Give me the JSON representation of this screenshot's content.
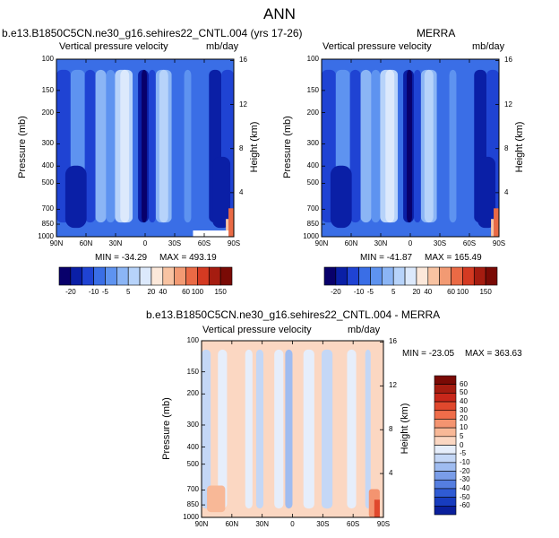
{
  "figure_title": "ANN",
  "colors": {
    "cb1": [
      "#08006b",
      "#0a1fa6",
      "#1f43d3",
      "#3a6ee6",
      "#5e93f0",
      "#8bb5f5",
      "#b7d3fa",
      "#dce9fc",
      "#fce8da",
      "#f8c3a2",
      "#f29a73",
      "#ea6a45",
      "#d43a22",
      "#a51c10",
      "#7a0a05"
    ],
    "cb2": [
      "#08006b",
      "#0a1fa6",
      "#1f43d3",
      "#3a6ee6",
      "#5e93f0",
      "#8bb5f5",
      "#b7d3fa",
      "#dce9fc",
      "#fce8da",
      "#f8c3a2",
      "#f29a73",
      "#ea6a45",
      "#d43a22",
      "#a51c10",
      "#7a0a05"
    ]
  },
  "chart_data": [
    {
      "type": "heatmap",
      "id": "model",
      "title": "b.e13.B1850C5CN.ne30_g16.sehires22_CNTL.004 (yrs 17-26)",
      "left_label": "Vertical pressure velocity",
      "right_label": "mb/day",
      "xlabel": "",
      "ylabel": "Pressure (mb)",
      "y2label": "Height (km)",
      "x_ticks": [
        "90N",
        "60N",
        "30N",
        "0",
        "30S",
        "60S",
        "90S"
      ],
      "p_ticks": [
        "100",
        "150",
        "200",
        "300",
        "400",
        "500",
        "700",
        "850",
        "1000"
      ],
      "h_ticks": [
        "16",
        "12",
        "8",
        "4"
      ],
      "min_label": "MIN = -34.29",
      "max_label": "MAX = 493.19",
      "colorbar_labels": [
        "-20",
        "-10",
        "-5",
        "5",
        "20",
        "40",
        "60",
        "100",
        "150"
      ]
    },
    {
      "type": "heatmap",
      "id": "obs",
      "title": "MERRA",
      "left_label": "Vertical pressure velocity",
      "right_label": "mb/day",
      "xlabel": "",
      "ylabel": "Pressure (mb)",
      "y2label": "Height (km)",
      "x_ticks": [
        "90N",
        "60N",
        "30N",
        "0",
        "30S",
        "60S",
        "90S"
      ],
      "p_ticks": [
        "100",
        "150",
        "200",
        "300",
        "400",
        "500",
        "700",
        "850",
        "1000"
      ],
      "h_ticks": [
        "16",
        "12",
        "8",
        "4"
      ],
      "min_label": "MIN = -41.87",
      "max_label": "MAX = 165.49",
      "colorbar_labels": [
        "-20",
        "-10",
        "-5",
        "5",
        "20",
        "40",
        "60",
        "100",
        "150"
      ]
    },
    {
      "type": "heatmap",
      "id": "diff",
      "title": "b.e13.B1850C5CN.ne30_g16.sehires22_CNTL.004 - MERRA",
      "left_label": "Vertical pressure velocity",
      "right_label": "mb/day",
      "xlabel": "",
      "ylabel": "Pressure (mb)",
      "y2label": "Height (km)",
      "x_ticks": [
        "90N",
        "60N",
        "30N",
        "0",
        "30S",
        "60S",
        "90S"
      ],
      "p_ticks": [
        "100",
        "150",
        "200",
        "300",
        "400",
        "500",
        "700",
        "850",
        "1000"
      ],
      "h_ticks": [
        "16",
        "12",
        "8",
        "4"
      ],
      "min_label": "MIN = -23.05",
      "max_label": "MAX = 363.63",
      "colorbar_labels": [
        "60",
        "50",
        "40",
        "30",
        "20",
        "10",
        "5",
        "0",
        "-5",
        "-10",
        "-20",
        "-30",
        "-40",
        "-50",
        "-60"
      ],
      "colorbar_colors": [
        "#7a0a05",
        "#a51c10",
        "#c8271a",
        "#e0482d",
        "#ef6d4a",
        "#f49470",
        "#f8b897",
        "#fbd7c2",
        "#e6eefb",
        "#c4d7f6",
        "#9fbcf0",
        "#7a9de8",
        "#557ee0",
        "#2f5bd4",
        "#173cbf",
        "#0a1f9c"
      ]
    }
  ]
}
